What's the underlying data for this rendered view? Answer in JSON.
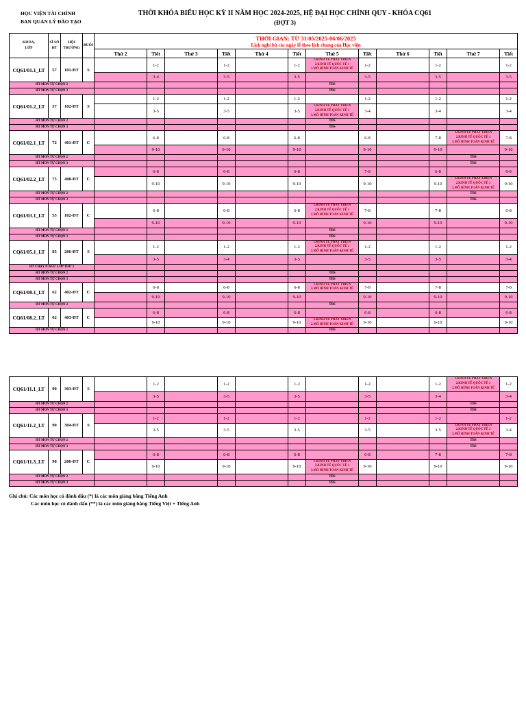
{
  "page": {
    "org_line1": "HỌC VIỆN TÀI CHÍNH",
    "org_line2": "BAN QUẢN LÝ ĐÀO TẠO",
    "title": "THỜI KHÓA BIỂU HỌC KỲ II NĂM HỌC 2024-2025, HỆ ĐẠI HỌC CHÍNH QUY - KHÓA CQ61",
    "subtitle": "(ĐỢT 3)",
    "note_line1": "Ghi chú: Các môn học có đánh dấu (*) là các môn giảng bằng Tiếng Anh",
    "note_line2": "Các môn học có đánh dấu (**) là các môn giảng bằng Tiếng Việt + Tiếng Anh"
  },
  "colors": {
    "highlight": "#FF99CC",
    "accent": "#FF0000",
    "subject_text": "#8B0000"
  },
  "labels": {
    "tbs": "TBS"
  },
  "table_header": {
    "time_line1": "THỜI GIAN: TỪ 31/05/2025-06/06/2025",
    "time_line2": "Lịch nghỉ bù các ngày lễ theo lịch chung của Học viện",
    "col_khoa_lop": "KHÓA,\nLỚP",
    "col_si_so": "SĨ SỐ\nHT",
    "col_hoi_truong": "HỘI\nTRƯỜNG",
    "col_buoi": "BUỔI",
    "tiet": "Tiết",
    "days": [
      "Thứ 2",
      "Thứ 3",
      "Thứ 4",
      "Thứ 5",
      "Thứ 6",
      "Thứ 7"
    ]
  },
  "sections": [
    {
      "classes": [
        {
          "name": "CQ61/01.1_LT",
          "size": "57",
          "room": "101-ĐT",
          "session": "S",
          "rows": [
            {
              "highlight": false,
              "cells": [
                {
                  "tiet": "1-2"
                },
                {
                  "tiet": "1-2"
                },
                {
                  "tiet": "1-2"
                },
                {
                  "day_lines": [
                    "1.KINH TẾ PHÁT TRIỂN",
                    "2.KINH TẾ QUỐC TẾ 1",
                    "3.MÔ HÌNH TOÁN KINH TẾ"
                  ],
                  "day_highlight": true,
                  "tiet": "1-2"
                },
                {
                  "tiet": "1-2"
                },
                {
                  "tiet": "1-2"
                }
              ]
            },
            {
              "highlight": true,
              "cells": [
                {
                  "tiet": "3-4"
                },
                {
                  "tiet": "3-5"
                },
                {
                  "tiet": "3-5"
                },
                {
                  "tiet": "3-5"
                },
                {
                  "tiet": "3-5"
                },
                {
                  "tiet": "3-5"
                }
              ]
            }
          ],
          "extra_rows": [
            {
              "label": "HT MÔN TỰ CHỌN 2",
              "tbs_col": 3
            },
            {
              "label": "HT MÔN TỰ CHỌN 3",
              "tbs_col": 3
            }
          ]
        },
        {
          "name": "CQ61/01.2_LT",
          "size": "57",
          "room": "102-ĐT",
          "session": "S",
          "rows": [
            {
              "highlight": false,
              "cells": [
                {
                  "tiet": "1-2"
                },
                {
                  "tiet": "1-2"
                },
                {
                  "tiet": "1-2"
                },
                {
                  "tiet": "1-2"
                },
                {
                  "tiet": "1-2"
                },
                {
                  "tiet": "1-2"
                }
              ]
            },
            {
              "highlight": false,
              "cells": [
                {
                  "tiet": "3-5"
                },
                {
                  "tiet": "3-5"
                },
                {
                  "tiet": "3-5"
                },
                {
                  "day_lines": [
                    "1.KINH TẾ PHÁT TRIỂN",
                    "2.KINH TẾ QUỐC TẾ 1",
                    "3.MÔ HÌNH TOÁN KINH TẾ"
                  ],
                  "day_highlight": true,
                  "tiet": "3-4"
                },
                {
                  "tiet": "3-4"
                },
                {
                  "tiet": "3-4"
                }
              ]
            }
          ],
          "extra_rows": [
            {
              "label": "HT MÔN TỰ CHỌN 2",
              "tbs_col": 3
            },
            {
              "label": "HT MÔN TỰ CHỌN 3",
              "tbs_col": 3
            }
          ]
        },
        {
          "name": "CQ61/02.1_LT",
          "size": "72",
          "room": "401-ĐT",
          "session": "C",
          "rows": [
            {
              "highlight": false,
              "cells": [
                {
                  "tiet": "6-8"
                },
                {
                  "tiet": "6-8"
                },
                {
                  "tiet": "6-8"
                },
                {
                  "tiet": "6-8"
                },
                {
                  "tiet": "7-8"
                },
                {
                  "day_lines": [
                    "1.KINH TẾ PHÁT TRIỂN",
                    "2.KINH TẾ QUỐC TẾ 1",
                    "3.MÔ HÌNH TOÁN KINH TẾ"
                  ],
                  "day_highlight": true,
                  "tiet": "7-8"
                }
              ]
            },
            {
              "highlight": true,
              "cells": [
                {
                  "tiet": "9-10"
                },
                {
                  "tiet": "9-10"
                },
                {
                  "tiet": "9-10"
                },
                {
                  "tiet": "9-10"
                },
                {
                  "tiet": "9-10"
                },
                {
                  "tiet": "9-10"
                }
              ]
            }
          ],
          "extra_rows": [
            {
              "label": "HT MÔN TỰ CHỌN 2",
              "tbs_col": 5
            },
            {
              "label": "HT MÔN TỰ CHỌN 3",
              "tbs_col": 5
            }
          ]
        },
        {
          "name": "CQ61/02.2_LT",
          "size": "75",
          "room": "408-ĐT",
          "session": "C",
          "rows": [
            {
              "highlight": true,
              "cells": [
                {
                  "tiet": "6-8"
                },
                {
                  "tiet": "6-8"
                },
                {
                  "tiet": "6-8"
                },
                {
                  "tiet": "7-8"
                },
                {
                  "tiet": "6-8"
                },
                {
                  "tiet": "6-8"
                }
              ]
            },
            {
              "highlight": false,
              "cells": [
                {
                  "tiet": "9-10"
                },
                {
                  "tiet": "9-10"
                },
                {
                  "tiet": "9-10"
                },
                {
                  "tiet": "9-10"
                },
                {
                  "tiet": "9-10"
                },
                {
                  "day_lines": [
                    "1.KINH TẾ PHÁT TRIỂN",
                    "2.KINH TẾ QUỐC TẾ 1",
                    "3.MÔ HÌNH TOÁN KINH TẾ"
                  ],
                  "day_highlight": true,
                  "tiet": "9-10"
                }
              ]
            }
          ],
          "extra_rows": [
            {
              "label": "HT MÔN TỰ CHỌN 2",
              "tbs_col": 5
            },
            {
              "label": "HT MÔN TỰ CHỌN 3",
              "tbs_col": 5
            }
          ]
        },
        {
          "name": "CQ61/03.1_LT",
          "size": "55",
          "room": "102-ĐT",
          "session": "C",
          "rows": [
            {
              "highlight": false,
              "cells": [
                {
                  "tiet": "6-8"
                },
                {
                  "tiet": "6-8"
                },
                {
                  "tiet": "6-8"
                },
                {
                  "day_lines": [
                    "1.KINH TẾ PHÁT TRIỂN",
                    "2.KINH TẾ QUỐC TẾ 1",
                    "3.MÔ HÌNH TOÁN KINH TẾ"
                  ],
                  "day_highlight": true,
                  "tiet": "7-8"
                },
                {
                  "tiet": "7-8"
                },
                {
                  "tiet": "6-8"
                }
              ]
            },
            {
              "highlight": true,
              "cells": [
                {
                  "tiet": "9-10"
                },
                {
                  "tiet": "9-10"
                },
                {
                  "tiet": "9-10"
                },
                {
                  "tiet": "9-10"
                },
                {
                  "tiet": "9-10"
                },
                {
                  "tiet": "9-10"
                }
              ]
            }
          ],
          "extra_rows": [
            {
              "label": "HT MÔN TỰ CHỌN 2",
              "tbs_col": 3
            },
            {
              "label": "HT MÔN TỰ CHỌN 3",
              "tbs_col": 3
            }
          ]
        },
        {
          "name": "CQ61/05.1_LT",
          "size": "85",
          "room": "206-ĐT",
          "session": "S",
          "rows": [
            {
              "highlight": false,
              "cells": [
                {
                  "tiet": "1-2"
                },
                {
                  "tiet": "1-2"
                },
                {
                  "tiet": "1-2"
                },
                {
                  "day_lines": [
                    "1.KINH TẾ PHÁT TRIỂN",
                    "2.KINH TẾ QUỐC TẾ 1",
                    "3.MÔ HÌNH TOÁN KINH TẾ"
                  ],
                  "day_highlight": true,
                  "tiet": "1-2"
                },
                {
                  "tiet": "1-2"
                },
                {
                  "tiet": "1-2"
                }
              ]
            },
            {
              "highlight": true,
              "cells": [
                {
                  "tiet": "3-5"
                },
                {
                  "tiet": "3-4"
                },
                {
                  "tiet": "3-5"
                },
                {
                  "tiet": "3-5"
                },
                {
                  "tiet": "3-5"
                },
                {
                  "tiet": "3-4"
                }
              ]
            }
          ],
          "extra_rows": [
            {
              "label": "HT CHẠY N.NGỮ LỚP THỨ 2",
              "tbs_col": null
            },
            {
              "label": "HT MÔN TỰ CHỌN 2",
              "tbs_col": 3
            },
            {
              "label": "HT MÔN TỰ CHỌN 3",
              "tbs_col": 3
            }
          ]
        },
        {
          "name": "CQ61/08.1_LT",
          "size": "62",
          "room": "402-ĐT",
          "session": "C",
          "rows": [
            {
              "highlight": false,
              "cells": [
                {
                  "tiet": "6-8"
                },
                {
                  "tiet": "6-8"
                },
                {
                  "tiet": "6-8"
                },
                {
                  "day_lines": [
                    "1.KINH TẾ PHÁT TRIỂN",
                    "2.MÔ HÌNH TOÁN KINH TẾ"
                  ],
                  "day_highlight": true,
                  "tiet": "7-8"
                },
                {
                  "tiet": "7-8"
                },
                {
                  "tiet": "7-8"
                }
              ]
            },
            {
              "highlight": true,
              "cells": [
                {
                  "tiet": "9-10"
                },
                {
                  "tiet": "9-10"
                },
                {
                  "tiet": "9-10"
                },
                {
                  "tiet": "9-10"
                },
                {
                  "tiet": "9-10"
                },
                {
                  "tiet": "9-10"
                }
              ]
            }
          ],
          "extra_rows": [
            {
              "label": "HT MÔN TỰ CHỌN 2",
              "tbs_col": 3
            }
          ]
        },
        {
          "name": "CQ61/08.2_LT",
          "size": "62",
          "room": "403-ĐT",
          "session": "C",
          "rows": [
            {
              "highlight": true,
              "cells": [
                {
                  "tiet": "6-8"
                },
                {
                  "tiet": "6-8"
                },
                {
                  "tiet": "6-8"
                },
                {
                  "tiet": "6-8"
                },
                {
                  "tiet": "6-8"
                },
                {
                  "tiet": "6-8"
                }
              ]
            },
            {
              "highlight": false,
              "cells": [
                {
                  "tiet": "9-10"
                },
                {
                  "tiet": "9-10"
                },
                {
                  "tiet": "9-10"
                },
                {
                  "day_lines": [
                    "1.KINH TẾ PHÁT TRIỂN",
                    "2.MÔ HÌNH TOÁN KINH TẾ"
                  ],
                  "day_highlight": true,
                  "tiet": "9-10"
                },
                {
                  "tiet": "9-10"
                },
                {
                  "tiet": "9-10"
                }
              ]
            }
          ],
          "extra_rows": [
            {
              "label": "HT MÔN TỰ CHỌN 2",
              "tbs_col": 3
            }
          ]
        }
      ]
    },
    {
      "classes": [
        {
          "name": "CQ61/11.1_LT",
          "size": "90",
          "room": "303-ĐT",
          "session": "S",
          "rows": [
            {
              "highlight": false,
              "cells": [
                {
                  "tiet": "1-2"
                },
                {
                  "tiet": "1-2"
                },
                {
                  "tiet": "1-2"
                },
                {
                  "tiet": "1-2"
                },
                {
                  "tiet": "1-2"
                },
                {
                  "day_lines": [
                    "1.KINH TẾ PHÁT TRIỂN",
                    "2.KINH TẾ QUỐC TẾ 1",
                    "3.MÔ HÌNH TOÁN KINH TẾ"
                  ],
                  "day_highlight": true,
                  "tiet": "1-2"
                }
              ]
            },
            {
              "highlight": true,
              "cells": [
                {
                  "tiet": "3-5"
                },
                {
                  "tiet": "3-5"
                },
                {
                  "tiet": "3-5"
                },
                {
                  "tiet": "3-5"
                },
                {
                  "tiet": "3-4"
                },
                {
                  "tiet": "3-4"
                }
              ]
            }
          ],
          "extra_rows": [
            {
              "label": "HT MÔN TỰ CHỌN 2",
              "tbs_col": 5
            },
            {
              "label": "HT MÔN TỰ CHỌN 3",
              "tbs_col": 5
            }
          ]
        },
        {
          "name": "CQ61/11.2_LT",
          "size": "90",
          "room": "304-ĐT",
          "session": "S",
          "rows": [
            {
              "highlight": true,
              "cells": [
                {
                  "tiet": "1-2"
                },
                {
                  "tiet": "1-2"
                },
                {
                  "tiet": "1-2"
                },
                {
                  "tiet": "1-2"
                },
                {
                  "tiet": "1-2"
                },
                {
                  "tiet": "1-2"
                }
              ]
            },
            {
              "highlight": false,
              "cells": [
                {
                  "tiet": "3-5"
                },
                {
                  "tiet": "3-5"
                },
                {
                  "tiet": "3-5"
                },
                {
                  "tiet": "3-5"
                },
                {
                  "tiet": "3-5"
                },
                {
                  "day_lines": [
                    "1.KINH TẾ PHÁT TRIỂN",
                    "2.KINH TẾ QUỐC TẾ 1",
                    "3.MÔ HÌNH TOÁN KINH TẾ"
                  ],
                  "day_highlight": true,
                  "tiet": "3-4"
                }
              ]
            }
          ],
          "extra_rows": [
            {
              "label": "HT MÔN TỰ CHỌN 2",
              "tbs_col": 5
            },
            {
              "label": "HT MÔN TỰ CHỌN 3",
              "tbs_col": 5
            }
          ]
        },
        {
          "name": "CQ61/11.3_LT",
          "size": "90",
          "room": "206-ĐT",
          "session": "C",
          "rows": [
            {
              "highlight": true,
              "cells": [
                {
                  "tiet": "6-8"
                },
                {
                  "tiet": "6-8"
                },
                {
                  "tiet": "6-8"
                },
                {
                  "tiet": "6-8"
                },
                {
                  "tiet": "7-8"
                },
                {
                  "tiet": "7-8"
                }
              ]
            },
            {
              "highlight": false,
              "cells": [
                {
                  "tiet": "9-10"
                },
                {
                  "tiet": "9-10"
                },
                {
                  "tiet": "9-10"
                },
                {
                  "day_lines": [
                    "1.KINH TẾ PHÁT TRIỂN",
                    "2.KINH TẾ QUỐC TẾ 1",
                    "3.MÔ HÌNH TOÁN KINH TẾ"
                  ],
                  "day_highlight": true,
                  "tiet": "9-10"
                },
                {
                  "tiet": "9-10"
                },
                {
                  "tiet": "9-10"
                }
              ]
            }
          ],
          "extra_rows": [
            {
              "label": "HT MÔN TỰ CHỌN 2",
              "tbs_col": 3
            },
            {
              "label": "HT MÔN TỰ CHỌN 3",
              "tbs_col": 3
            }
          ]
        }
      ]
    }
  ]
}
